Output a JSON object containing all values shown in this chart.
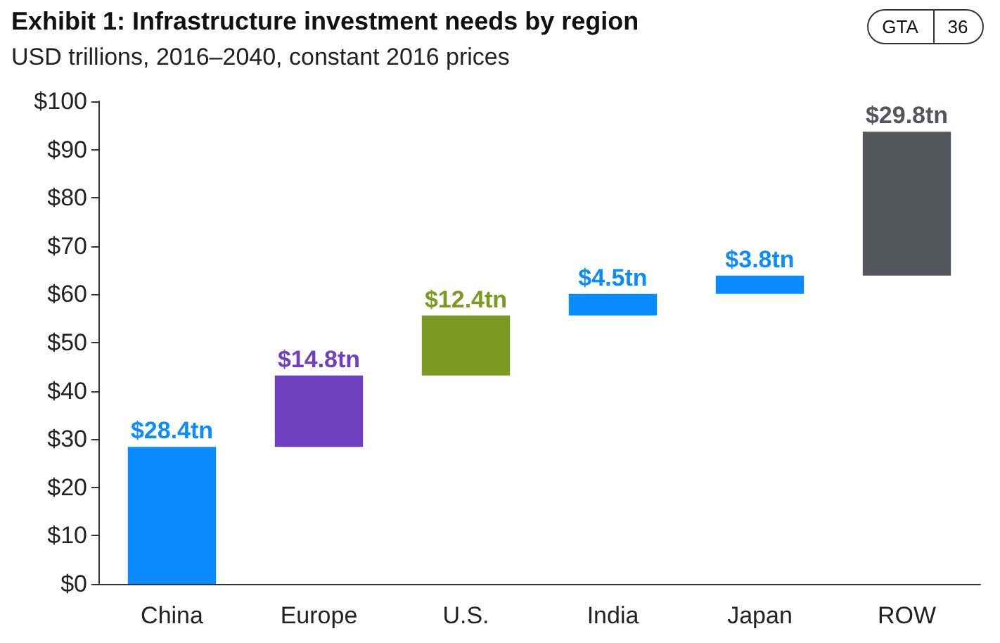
{
  "chart_data": {
    "type": "bar",
    "title": "Exhibit 1: Infrastructure investment needs by region",
    "subtitle": "USD trillions, 2016–2040, constant 2016 prices",
    "annotations": [
      "GTA",
      "36"
    ],
    "categories": [
      "China",
      "Europe",
      "U.S.",
      "India",
      "Japan",
      "ROW"
    ],
    "values": [
      28.4,
      14.8,
      12.4,
      4.5,
      3.8,
      29.8
    ],
    "base": [
      0,
      28.4,
      43.2,
      55.6,
      60.1,
      63.9
    ],
    "colors": [
      "#0a8cff",
      "#6e40c0",
      "#7a9a22",
      "#0a8cff",
      "#0a8cff",
      "#53575b"
    ],
    "value_labels": [
      "$28.4tn",
      "$14.8tn",
      "$12.4tn",
      "$4.5tn",
      "$3.8tn",
      "$29.8tn"
    ],
    "ylim": [
      0,
      100
    ],
    "yticks": [
      {
        "value": 0,
        "label": "$0"
      },
      {
        "value": 10,
        "label": "$10"
      },
      {
        "value": 20,
        "label": "$20"
      },
      {
        "value": 30,
        "label": "$30"
      },
      {
        "value": 40,
        "label": "$40"
      },
      {
        "value": 50,
        "label": "$50"
      },
      {
        "value": 60,
        "label": "$60"
      },
      {
        "value": 70,
        "label": "$70"
      },
      {
        "value": 80,
        "label": "$80"
      },
      {
        "value": 90,
        "label": "$90"
      },
      {
        "value": 100,
        "label": "$100"
      }
    ],
    "grid": false
  }
}
